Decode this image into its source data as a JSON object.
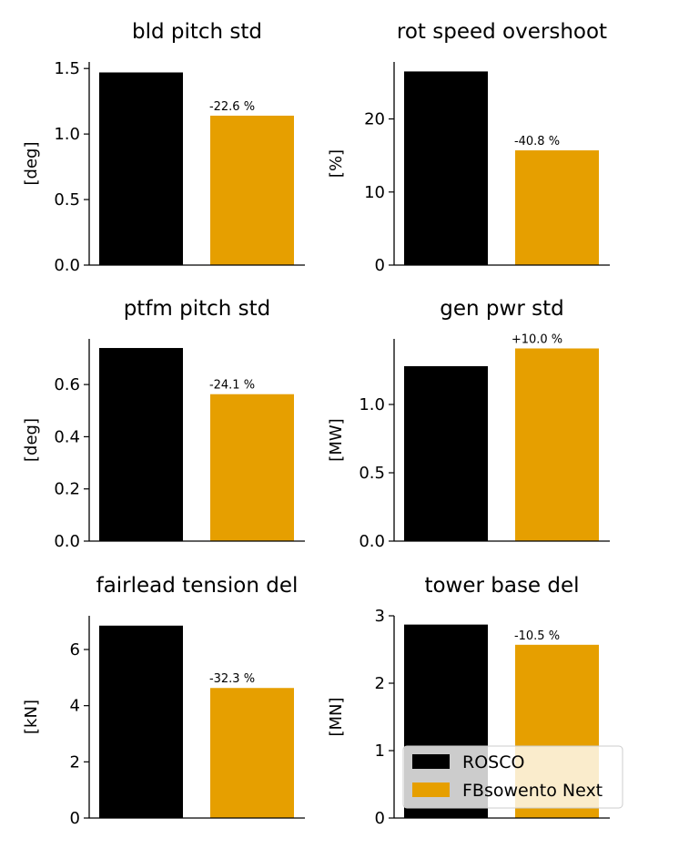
{
  "colors": {
    "rosco": "#000000",
    "fbsowento": "#e69f00",
    "axis": "#000000"
  },
  "legend": {
    "placement": "lower-right of last panel",
    "entries": [
      {
        "label": "ROSCO",
        "color": "#000000"
      },
      {
        "label": "FBsowento Next",
        "color": "#e69f00"
      }
    ]
  },
  "chart_data": [
    {
      "type": "bar",
      "title": "bld pitch std",
      "ylabel": "[deg]",
      "ylim": [
        0,
        1.55
      ],
      "yticks": [
        "0.0",
        "0.5",
        "1.0",
        "1.5"
      ],
      "ytick_values": [
        0,
        0.5,
        1.0,
        1.5
      ],
      "series": [
        {
          "name": "ROSCO",
          "values": [
            1.47
          ]
        },
        {
          "name": "FBsowento Next",
          "values": [
            1.14
          ]
        }
      ],
      "annotation": "-22.6 %"
    },
    {
      "type": "bar",
      "title": "rot speed overshoot",
      "ylabel": "[%]",
      "ylim": [
        0,
        27.8
      ],
      "yticks": [
        "0",
        "10",
        "20"
      ],
      "ytick_values": [
        0,
        10,
        20
      ],
      "series": [
        {
          "name": "ROSCO",
          "values": [
            26.5
          ]
        },
        {
          "name": "FBsowento Next",
          "values": [
            15.7
          ]
        }
      ],
      "annotation": "-40.8 %"
    },
    {
      "type": "bar",
      "title": "ptfm pitch std",
      "ylabel": "[deg]",
      "ylim": [
        0,
        0.775
      ],
      "yticks": [
        "0.0",
        "0.2",
        "0.4",
        "0.6"
      ],
      "ytick_values": [
        0,
        0.2,
        0.4,
        0.6
      ],
      "series": [
        {
          "name": "ROSCO",
          "values": [
            0.74
          ]
        },
        {
          "name": "FBsowento Next",
          "values": [
            0.563
          ]
        }
      ],
      "annotation": "-24.1 %"
    },
    {
      "type": "bar",
      "title": "gen pwr std",
      "ylabel": "[MW]",
      "ylim": [
        0,
        1.48
      ],
      "yticks": [
        "0.0",
        "0.5",
        "1.0"
      ],
      "ytick_values": [
        0,
        0.5,
        1.0
      ],
      "series": [
        {
          "name": "ROSCO",
          "values": [
            1.28
          ]
        },
        {
          "name": "FBsowento Next",
          "values": [
            1.41
          ]
        }
      ],
      "annotation": "+10.0 %"
    },
    {
      "type": "bar",
      "title": "fairlead tension del",
      "ylabel": "[kN]",
      "ylim": [
        0,
        7.2
      ],
      "yticks": [
        "0",
        "2",
        "4",
        "6"
      ],
      "ytick_values": [
        0,
        2,
        4,
        6
      ],
      "series": [
        {
          "name": "ROSCO",
          "values": [
            6.85
          ]
        },
        {
          "name": "FBsowento Next",
          "values": [
            4.63
          ]
        }
      ],
      "annotation": "-32.3 %"
    },
    {
      "type": "bar",
      "title": "tower base del",
      "ylabel": "[MN]",
      "ylim": [
        0,
        3.0
      ],
      "yticks": [
        "0",
        "1",
        "2",
        "3"
      ],
      "ytick_values": [
        0,
        1,
        2,
        3
      ],
      "series": [
        {
          "name": "ROSCO",
          "values": [
            2.87
          ]
        },
        {
          "name": "FBsowento Next",
          "values": [
            2.57
          ]
        }
      ],
      "annotation": "-10.5 %"
    }
  ]
}
